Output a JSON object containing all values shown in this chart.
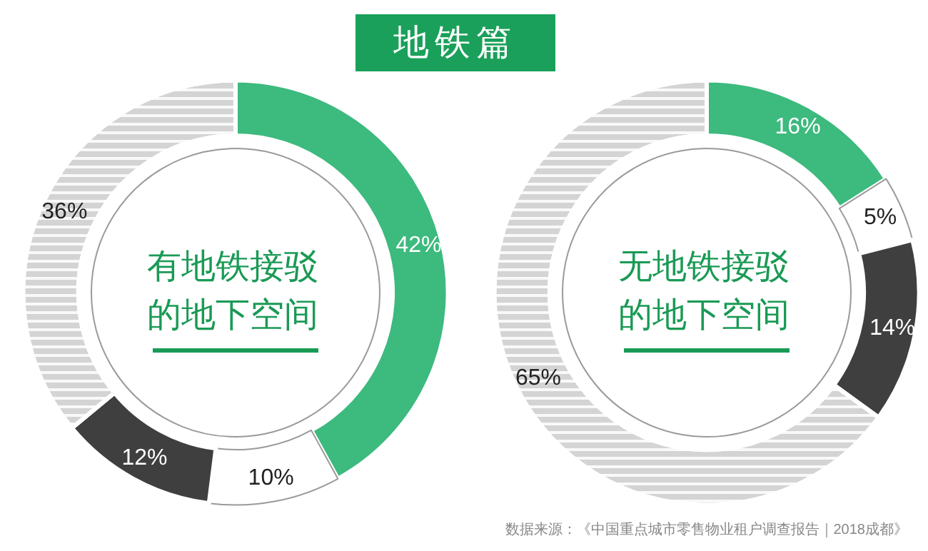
{
  "chart_data": [
    {
      "type": "donut",
      "title": "地铁篇",
      "subtitle": "有地铁接驳的地下空间",
      "categories": [
        null,
        null,
        null,
        null
      ],
      "values": [
        42,
        10,
        12,
        36
      ],
      "colors": [
        "#3dba7e",
        "#ffffff",
        "#3f3f3f",
        "#d4d4d4"
      ],
      "value_labels": [
        "42%",
        "10%",
        "12%",
        "36%"
      ]
    },
    {
      "type": "donut",
      "subtitle": "无地铁接驳的地下空间",
      "categories": [
        null,
        null,
        null,
        null
      ],
      "values": [
        16,
        5,
        14,
        65
      ],
      "colors": [
        "#3dba7e",
        "#ffffff",
        "#3f3f3f",
        "#d4d4d4"
      ],
      "value_labels": [
        "16%",
        "5%",
        "14%",
        "65%"
      ],
      "annotations": [
        "数据来源：《中国重点城市零售物业租户调查报告｜2018成都》"
      ]
    }
  ]
}
